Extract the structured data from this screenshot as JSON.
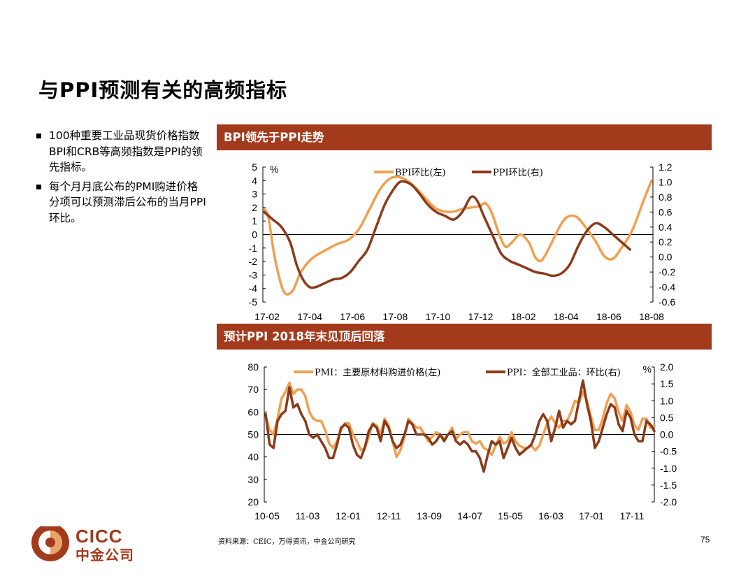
{
  "page": {
    "title": "与PPI预测有关的高频指标",
    "bullets": [
      "100种重要工业品现货价格指数BPI和CRB等高频指数是PPI的领先指标。",
      "每个月月底公布的PMI购进价格分项可以预测滞后公布的当月PPI环比。"
    ],
    "source": "资料来源：CEIC，万得资讯，中金公司研究",
    "page_number": "75",
    "logo_en": "CICC",
    "logo_cn": "中金公司",
    "colors": {
      "accent": "#a33a1c",
      "series_light": "#f0a050",
      "series_dark": "#8b3a1a"
    }
  },
  "chart_data": [
    {
      "type": "line",
      "title": "BPI领先于PPI走势",
      "x_ticks": [
        "17-02",
        "17-04",
        "17-06",
        "17-08",
        "17-10",
        "17-12",
        "18-02",
        "18-04",
        "18-06",
        "18-08"
      ],
      "x_range": [
        0,
        18
      ],
      "left_axis": {
        "min": -5,
        "max": 5,
        "step": 1,
        "unit": "%"
      },
      "right_axis": {
        "min": -0.6,
        "max": 1.2,
        "step": 0.2
      },
      "grid": false,
      "series": [
        {
          "name": "BPI环比(左)",
          "axis": "left",
          "color": "#f0a050",
          "x": [
            0,
            0.2,
            0.5,
            0.9,
            1.3,
            1.7,
            2.2,
            2.8,
            3.4,
            3.9,
            4.4,
            4.9,
            5.4,
            5.9,
            6.4,
            6.8,
            7.2,
            7.6,
            8.0,
            8.4,
            8.8,
            9.2,
            9.6,
            10.0,
            10.3,
            10.6,
            10.9,
            11.2,
            11.5,
            11.9,
            12.3,
            12.6,
            12.9,
            13.3,
            13.7,
            14.0,
            14.3,
            14.6,
            15.0,
            15.4,
            15.8,
            16.2,
            16.6,
            17.1,
            17.6,
            18.0
          ],
          "y": [
            1.9,
            1.2,
            -1.8,
            -4.2,
            -4.2,
            -2.8,
            -1.8,
            -1.2,
            -0.7,
            -0.4,
            0.4,
            1.9,
            3.4,
            4.2,
            4.2,
            3.8,
            3.2,
            2.5,
            1.9,
            1.7,
            1.7,
            1.9,
            2.0,
            2.1,
            2.3,
            1.5,
            0.1,
            -0.9,
            -0.6,
            0.0,
            -0.6,
            -1.7,
            -1.9,
            -0.8,
            0.5,
            1.2,
            1.4,
            1.2,
            0.4,
            -0.5,
            -1.6,
            -1.8,
            -1.0,
            0.3,
            2.4,
            4.0
          ]
        },
        {
          "name": "PPI环比(右)",
          "axis": "right",
          "color": "#8b3a1a",
          "x": [
            0,
            0.4,
            0.8,
            1.2,
            1.5,
            1.8,
            2.1,
            2.4,
            2.8,
            3.2,
            3.6,
            4.0,
            4.4,
            4.8,
            5.2,
            5.6,
            6.0,
            6.3,
            6.6,
            6.9,
            7.2,
            7.6,
            8.0,
            8.4,
            8.8,
            9.2,
            9.6,
            9.9,
            10.2,
            10.6,
            11.0,
            11.4,
            11.8,
            12.2,
            12.6,
            13.0,
            13.4,
            13.8,
            14.2,
            14.6,
            15.0,
            15.4,
            15.8,
            16.2,
            16.6,
            17.0
          ],
          "y": [
            0.6,
            0.5,
            0.4,
            0.2,
            -0.1,
            -0.3,
            -0.4,
            -0.4,
            -0.35,
            -0.3,
            -0.28,
            -0.2,
            -0.05,
            0.1,
            0.4,
            0.7,
            0.9,
            1.0,
            1.0,
            0.95,
            0.85,
            0.7,
            0.6,
            0.55,
            0.5,
            0.6,
            0.8,
            0.75,
            0.55,
            0.3,
            0.05,
            -0.05,
            -0.1,
            -0.15,
            -0.2,
            -0.22,
            -0.25,
            -0.22,
            -0.1,
            0.15,
            0.35,
            0.45,
            0.4,
            0.3,
            0.2,
            0.1
          ]
        }
      ]
    },
    {
      "type": "line",
      "title": "预计PPI 2018年末见顶后回落",
      "x_ticks": [
        "10-05",
        "11-03",
        "12-01",
        "12-11",
        "13-09",
        "14-07",
        "15-05",
        "16-03",
        "17-01",
        "17-11"
      ],
      "x_range": [
        0,
        98
      ],
      "left_axis": {
        "min": 20,
        "max": 80,
        "step": 10
      },
      "right_axis": {
        "min": -2.0,
        "max": 2.0,
        "step": 0.5,
        "unit": "%"
      },
      "grid": false,
      "series": [
        {
          "name": "PMI：主要原材料购进价格(左)",
          "axis": "left",
          "color": "#f0a050",
          "x": [
            0,
            1,
            2,
            3,
            4,
            5,
            6,
            7,
            8,
            9,
            10,
            11,
            12,
            13,
            14,
            15,
            16,
            17,
            18,
            19,
            20,
            21,
            22,
            23,
            24,
            25,
            26,
            27,
            28,
            29,
            30,
            31,
            32,
            33,
            34,
            35,
            36,
            37,
            38,
            39,
            40,
            41,
            42,
            43,
            44,
            45,
            46,
            47,
            48,
            49,
            50,
            51,
            52,
            53,
            54,
            55,
            56,
            57,
            58,
            59,
            60,
            61,
            62,
            63,
            64,
            65,
            66,
            67,
            68,
            69,
            70,
            71,
            72,
            73,
            74,
            75,
            76,
            77,
            78,
            79,
            80,
            81,
            82,
            83,
            84,
            85,
            86,
            87,
            88,
            89,
            90,
            91,
            92,
            93,
            94,
            95,
            96,
            97,
            98
          ],
          "y": [
            58,
            52,
            50,
            57,
            66,
            69,
            73,
            68,
            70,
            70,
            67,
            60,
            57,
            56,
            56,
            52,
            46,
            44,
            47,
            52,
            55,
            55,
            50,
            47,
            43,
            44,
            49,
            55,
            54,
            50,
            57,
            54,
            47,
            40,
            43,
            49,
            57,
            55,
            53,
            53,
            50,
            47,
            49,
            51,
            50,
            48,
            50,
            53,
            48,
            50,
            51,
            51,
            47,
            46,
            47,
            44,
            43,
            41,
            45,
            49,
            46,
            47,
            51,
            47,
            45,
            44,
            44,
            45,
            43,
            45,
            50,
            55,
            58,
            55,
            53,
            56,
            56,
            60,
            65,
            64,
            69,
            65,
            58,
            52,
            52,
            57,
            64,
            68,
            66,
            60,
            56,
            63,
            60,
            54,
            52,
            57,
            57,
            53,
            54
          ]
        },
        {
          "name": "PPI：全部工业品：环比(右)",
          "axis": "right",
          "color": "#8b3a1a",
          "x": [
            0,
            1,
            2,
            3,
            4,
            5,
            6,
            7,
            8,
            9,
            10,
            11,
            12,
            13,
            14,
            15,
            16,
            17,
            18,
            19,
            20,
            21,
            22,
            23,
            24,
            25,
            26,
            27,
            28,
            29,
            30,
            31,
            32,
            33,
            34,
            35,
            36,
            37,
            38,
            39,
            40,
            41,
            42,
            43,
            44,
            45,
            46,
            47,
            48,
            49,
            50,
            51,
            52,
            53,
            54,
            55,
            56,
            57,
            58,
            59,
            60,
            61,
            62,
            63,
            64,
            65,
            66,
            67,
            68,
            69,
            70,
            71,
            72,
            73,
            74,
            75,
            76,
            77,
            78,
            79,
            80,
            81,
            82,
            83,
            84,
            85,
            86,
            87,
            88,
            89,
            90,
            91,
            92,
            93,
            94,
            95,
            96,
            97,
            98
          ],
          "y": [
            0.6,
            -0.3,
            -0.4,
            0.4,
            0.6,
            0.7,
            1.4,
            0.8,
            0.9,
            0.6,
            0.4,
            0.0,
            -0.1,
            0.0,
            -0.2,
            -0.4,
            -0.7,
            -0.7,
            -0.3,
            0.2,
            0.3,
            0.2,
            -0.3,
            -0.6,
            -0.7,
            -0.4,
            0.1,
            0.3,
            0.2,
            -0.2,
            0.4,
            0.2,
            -0.2,
            -0.4,
            -0.3,
            0.0,
            0.4,
            0.3,
            0.0,
            0.0,
            0.0,
            -0.1,
            -0.3,
            -0.2,
            0.0,
            -0.2,
            0.0,
            0.1,
            -0.2,
            -0.3,
            -0.2,
            -0.3,
            -0.5,
            -0.5,
            -0.7,
            -1.1,
            -0.6,
            -0.2,
            -0.3,
            -0.2,
            -0.7,
            -0.4,
            -0.1,
            -0.4,
            -0.6,
            -0.5,
            -0.4,
            -0.3,
            0.0,
            0.4,
            0.6,
            0.4,
            -0.2,
            0.2,
            0.7,
            0.2,
            0.4,
            0.3,
            0.4,
            1.0,
            1.6,
            0.9,
            0.4,
            -0.4,
            -0.2,
            0.2,
            0.6,
            0.9,
            0.8,
            0.3,
            0.1,
            0.7,
            0.5,
            0.0,
            -0.2,
            -0.2,
            0.4,
            0.3,
            0.1
          ]
        }
      ]
    }
  ]
}
